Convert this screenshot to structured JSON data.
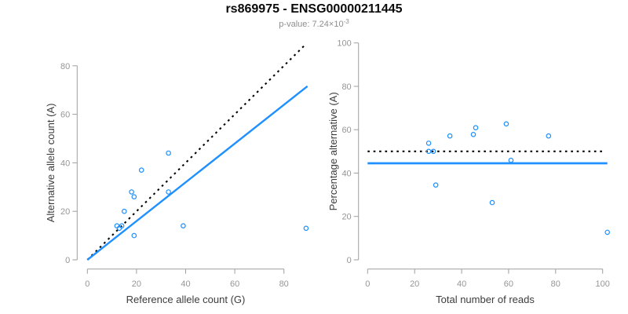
{
  "title": "rs869975 - ENSG00000211445",
  "subtitle": {
    "base": "p-value: 7.24×10",
    "exponent": "-3"
  },
  "colors": {
    "accent_blue": "#1e90ff",
    "reference_line_black": "#000000",
    "axis_gray": "#9e9e9e",
    "tick_label_gray": "#969696",
    "axis_label_dark": "#3c3c3c",
    "subtitle_gray": "#8e8e8e"
  },
  "chart_data": [
    {
      "type": "scatter",
      "name": "allele-counts-scatter",
      "xlabel": "Reference allele count (G)",
      "ylabel": "Alternative allele count (A)",
      "xlim": [
        0,
        90
      ],
      "ylim": [
        0,
        89
      ],
      "xticks": [
        0,
        20,
        40,
        60,
        80
      ],
      "yticks": [
        0,
        20,
        40,
        60,
        80
      ],
      "grid": false,
      "legend": "none",
      "marker": "open-circle",
      "points": [
        [
          12,
          14
        ],
        [
          13,
          13
        ],
        [
          14,
          14
        ],
        [
          15,
          20
        ],
        [
          18,
          28
        ],
        [
          19,
          26
        ],
        [
          19,
          10
        ],
        [
          22,
          37
        ],
        [
          33,
          28
        ],
        [
          33,
          44
        ],
        [
          39,
          14
        ],
        [
          89,
          13
        ]
      ],
      "lines": [
        {
          "name": "identity-line",
          "x1": 0,
          "y1": 0,
          "x2": 88.6,
          "y2": 88.6,
          "style": "dotted",
          "color": "#000000",
          "lw": 2.1
        },
        {
          "name": "fit-line",
          "x1": 0,
          "y1": 0,
          "x2": 89.6,
          "y2": 71.6,
          "style": "solid",
          "color": "#1e90ff",
          "lw": 2.4
        }
      ]
    },
    {
      "type": "scatter",
      "name": "percentage-vs-reads-scatter",
      "xlabel": "Total number of reads",
      "ylabel": "Percentage alternative (A)",
      "xlim": [
        0,
        102
      ],
      "ylim": [
        0,
        100
      ],
      "xticks": [
        0,
        20,
        40,
        60,
        80,
        100
      ],
      "yticks": [
        0,
        20,
        40,
        60,
        80,
        100
      ],
      "grid": false,
      "legend": "none",
      "marker": "open-circle",
      "points": [
        [
          26,
          53.8
        ],
        [
          26,
          50
        ],
        [
          28,
          50
        ],
        [
          29,
          34.5
        ],
        [
          35,
          57.1
        ],
        [
          45,
          57.8
        ],
        [
          46,
          60.9
        ],
        [
          53,
          26.4
        ],
        [
          59,
          62.7
        ],
        [
          61,
          45.9
        ],
        [
          77,
          57.1
        ],
        [
          102,
          12.7
        ]
      ],
      "lines": [
        {
          "name": "fifty-percent-line",
          "x1": 0,
          "y1": 50,
          "x2": 100.3,
          "y2": 50,
          "style": "dotted",
          "color": "#000000",
          "lw": 2.1
        },
        {
          "name": "fit-line",
          "x1": 0,
          "y1": 44.5,
          "x2": 102,
          "y2": 44.5,
          "style": "solid",
          "color": "#1e90ff",
          "lw": 2.7
        }
      ]
    }
  ]
}
